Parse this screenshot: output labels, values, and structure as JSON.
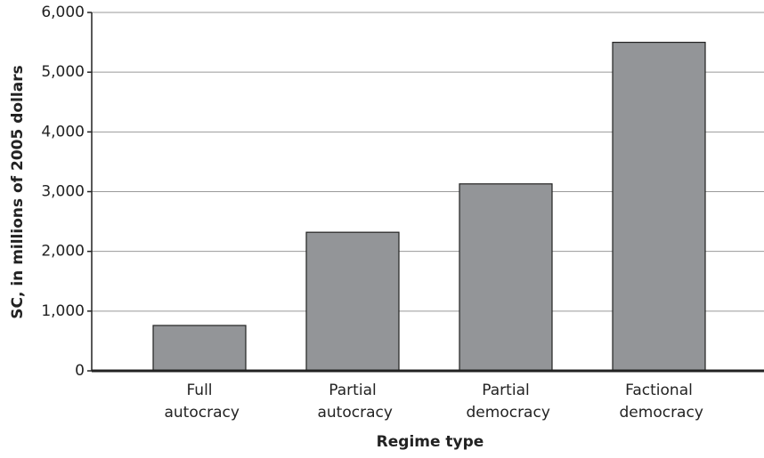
{
  "chart_data": {
    "type": "bar",
    "ylabel": "SC, in millions of 2005 dollars",
    "xlabel": "Regime type",
    "categories": [
      "Full autocracy",
      "Partial autocracy",
      "Partial democracy",
      "Factional democracy"
    ],
    "values": [
      760,
      2320,
      3130,
      5500
    ],
    "color": "#939598",
    "ylim": [
      0,
      6000
    ],
    "yticks": [
      0,
      {
        "value": 1000,
        "label": "1,000"
      },
      {
        "value": 2000,
        "label": "2,000"
      },
      {
        "value": 3000,
        "label": "3,000"
      },
      {
        "value": 4000,
        "label": "4,000"
      },
      {
        "value": 5000,
        "label": "5,000"
      },
      {
        "value": 6000,
        "label": "6,000"
      }
    ],
    "grid": true
  }
}
